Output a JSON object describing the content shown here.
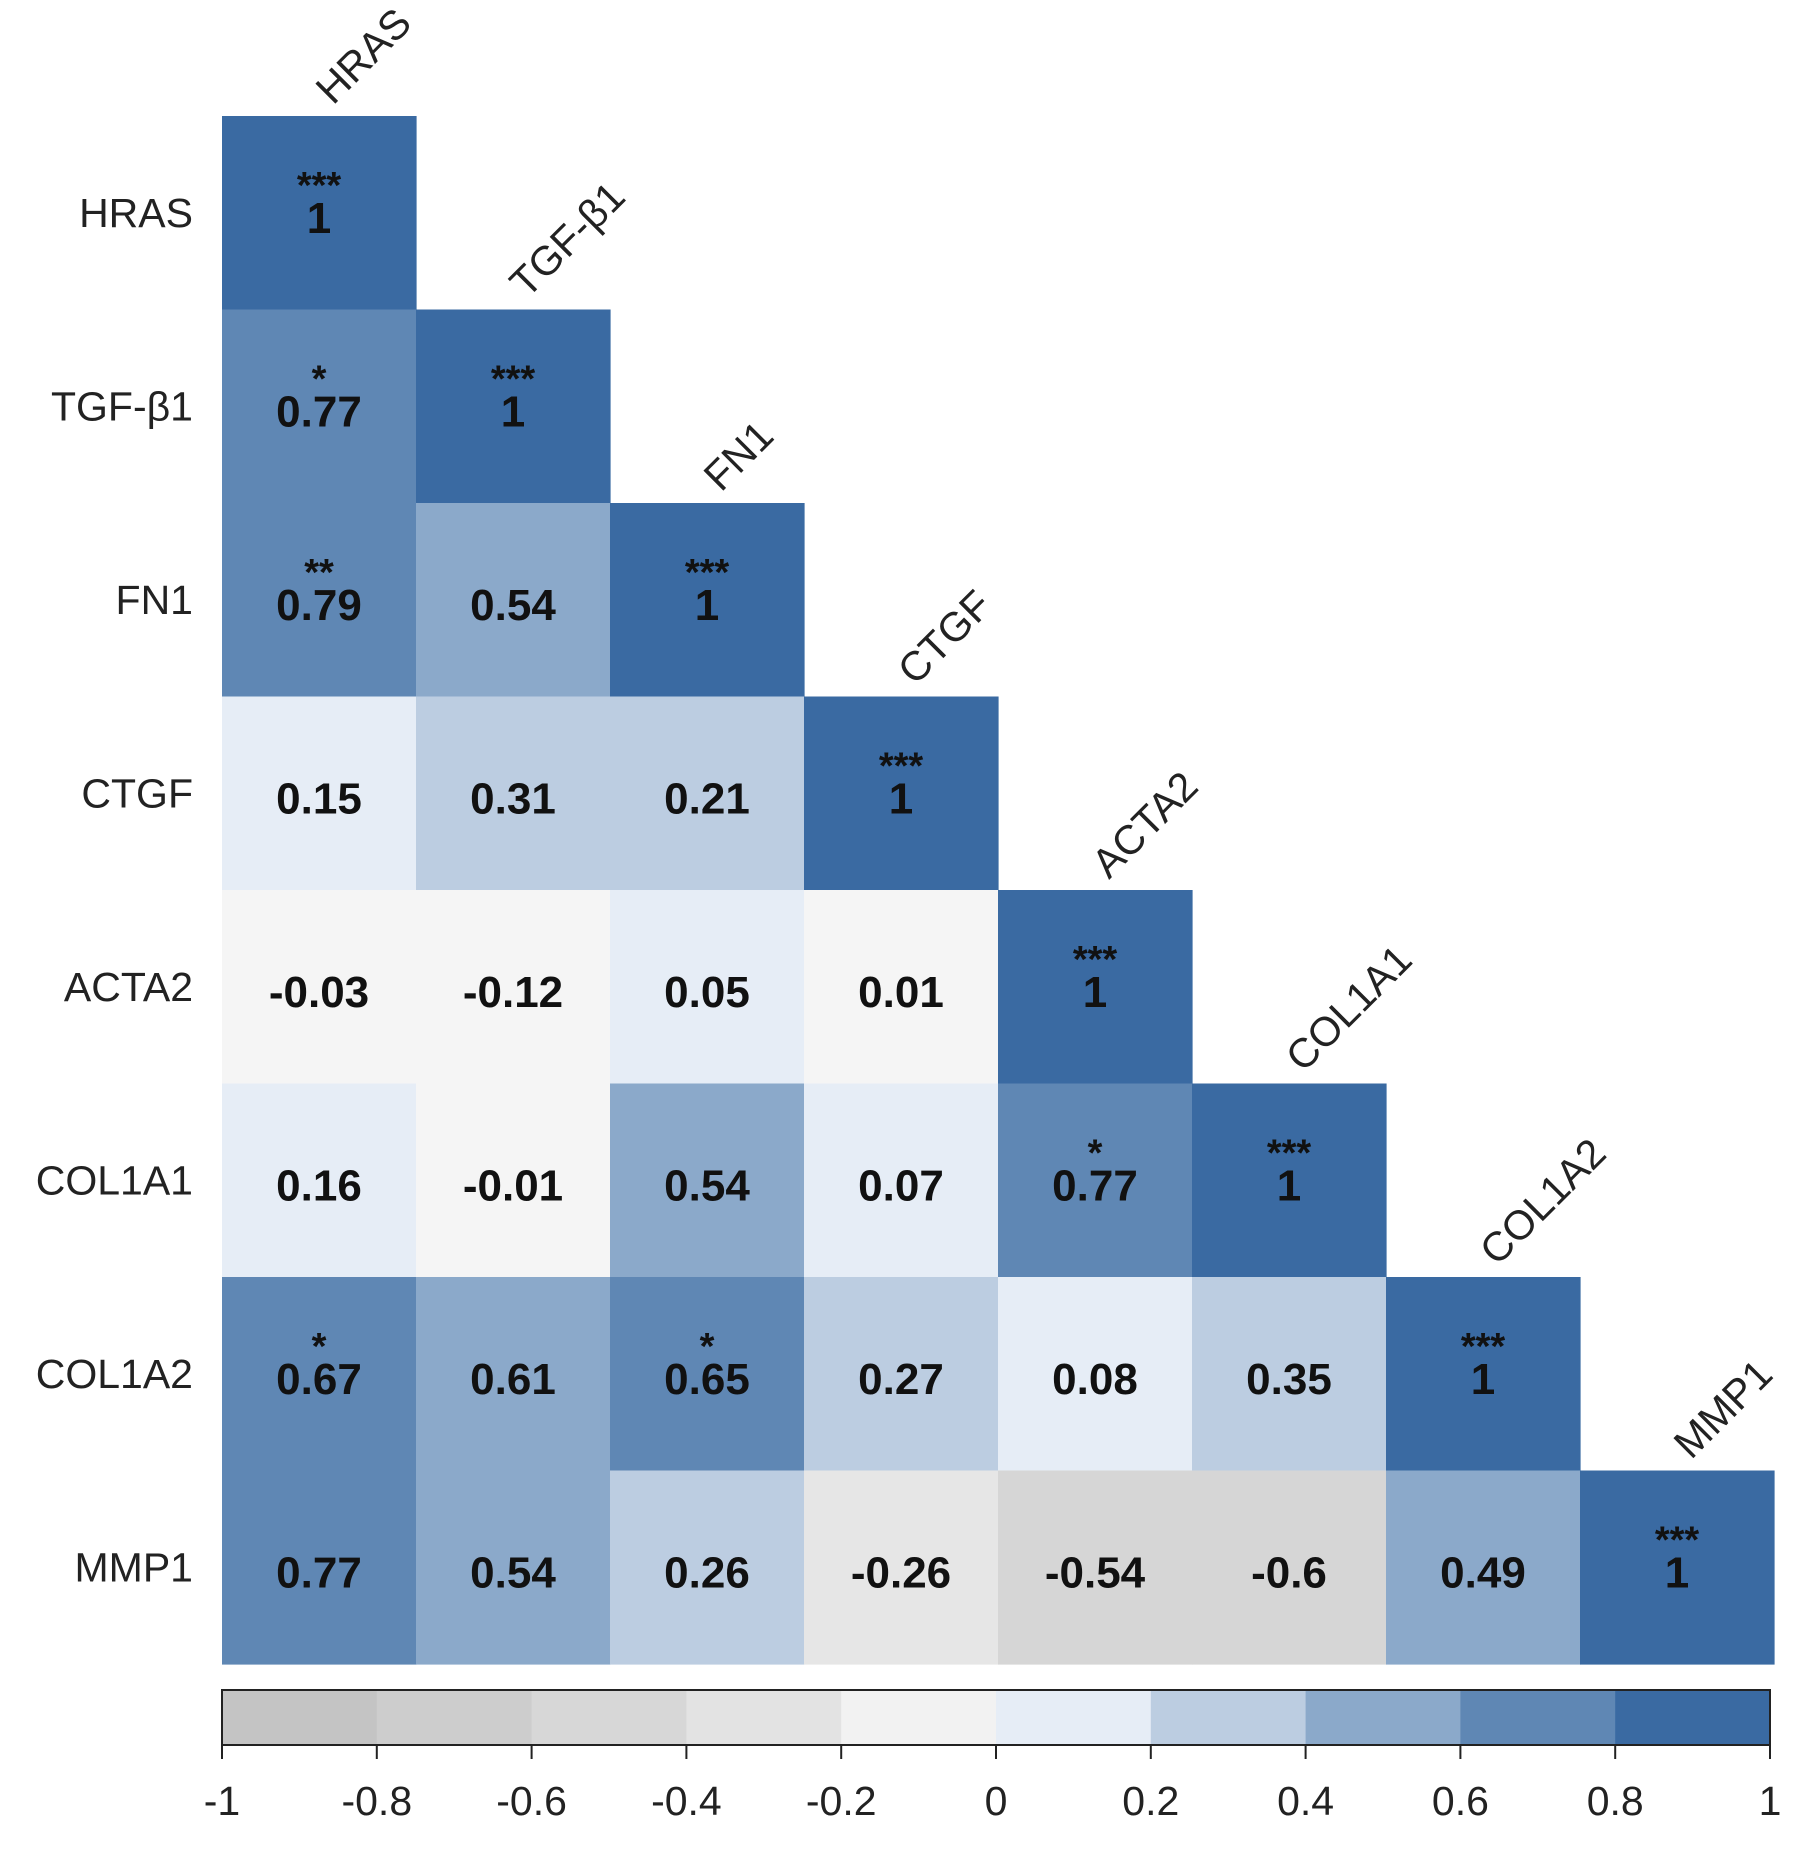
{
  "chart_data": {
    "type": "heatmap",
    "variables": [
      "HRAS",
      "TGF-β1",
      "FN1",
      "CTGF",
      "ACTA2",
      "COL1A1",
      "COL1A2",
      "MMP1"
    ],
    "matrix": [
      [
        "1"
      ],
      [
        "0.77",
        "1"
      ],
      [
        "0.79",
        "0.54",
        "1"
      ],
      [
        "0.15",
        "0.31",
        "0.21",
        "1"
      ],
      [
        "-0.03",
        "-0.12",
        "0.05",
        "0.01",
        "1"
      ],
      [
        "0.16",
        "-0.01",
        "0.54",
        "0.07",
        "0.77",
        "1"
      ],
      [
        "0.67",
        "0.61",
        "0.65",
        "0.27",
        "0.08",
        "0.35",
        "1"
      ],
      [
        "0.77",
        "0.54",
        "0.26",
        "-0.26",
        "-0.54",
        "-0.6",
        "0.49",
        "1"
      ]
    ],
    "significance": [
      [
        "***"
      ],
      [
        "*",
        "***"
      ],
      [
        "**",
        "",
        "***"
      ],
      [
        "",
        "",
        "",
        "***"
      ],
      [
        "",
        "",
        "",
        "",
        "***"
      ],
      [
        "",
        "",
        "",
        "",
        "*",
        "***"
      ],
      [
        "*",
        "",
        "*",
        "",
        "",
        "",
        "***"
      ],
      [
        "",
        "",
        "",
        "",
        "",
        "",
        "",
        "***"
      ]
    ],
    "colorbar": {
      "ticks": [
        "-1",
        "-0.8",
        "-0.6",
        "-0.4",
        "-0.2",
        "0",
        "0.2",
        "0.4",
        "0.6",
        "0.8",
        "1"
      ],
      "colors": [
        "#c4c4c4",
        "#cdcdcd",
        "#d7d7d7",
        "#e3e3e3",
        "#f2f2f2",
        "#e6edf6",
        "#bccde1",
        "#8ba9ca",
        "#5f87b4",
        "#3a6aa2"
      ],
      "range": [
        -1,
        1
      ]
    },
    "colors": {
      "diag": "#3a6aa2",
      "high": "#5f87b4",
      "mid": "#8ba9ca",
      "low": "#bccde1",
      "vlow": "#e6edf6",
      "neutral": "#f5f5f5",
      "neg1": "#e6e6e6",
      "neg2": "#d6d6d6"
    }
  }
}
